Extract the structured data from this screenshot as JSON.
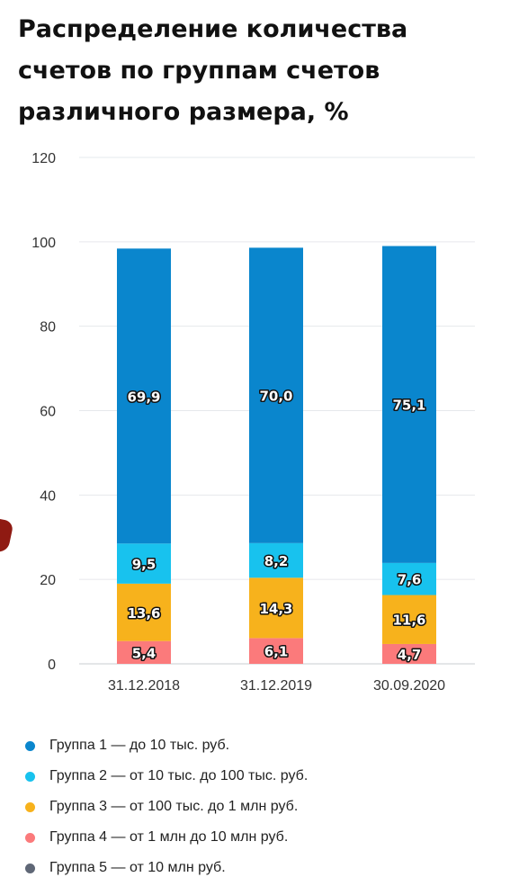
{
  "title": "Распределение количества счетов по группам счетов различного размера, %",
  "chart_data": {
    "type": "bar",
    "stacked": true,
    "categories": [
      "31.12.2018",
      "31.12.2019",
      "30.09.2020"
    ],
    "ylim": [
      0,
      120
    ],
    "yticks": [
      "0",
      "20",
      "40",
      "60",
      "80",
      "100",
      "120"
    ],
    "grid": true,
    "legend_position": "bottom",
    "series": [
      {
        "name": "Группа 1 — до 10 тыс. руб.",
        "color": "#0a86cd",
        "values": [
          69.9,
          70.0,
          75.1
        ],
        "labels": [
          "69,9",
          "70,0",
          "75,1"
        ]
      },
      {
        "name": "Группа 2 — от 10 тыс. до 100 тыс. руб.",
        "color": "#18c2ee",
        "values": [
          9.5,
          8.2,
          7.6
        ],
        "labels": [
          "9,5",
          "8,2",
          "7,6"
        ]
      },
      {
        "name": "Группа 3 — от 100 тыс. до 1 млн руб.",
        "color": "#f7b21c",
        "values": [
          13.6,
          14.3,
          11.6
        ],
        "labels": [
          "13,6",
          "14,3",
          "11,6"
        ]
      },
      {
        "name": "Группа 4 — от 1 млн до 10 млн руб.",
        "color": "#fb7a7b",
        "values": [
          5.4,
          6.1,
          4.7
        ],
        "labels": [
          "5,4",
          "6,1",
          "4,7"
        ]
      },
      {
        "name": "Группа 5 — от 10 млн руб.",
        "color": "#5f6776",
        "values": [
          0,
          0,
          0
        ],
        "labels": [
          "",
          "",
          ""
        ]
      }
    ]
  }
}
